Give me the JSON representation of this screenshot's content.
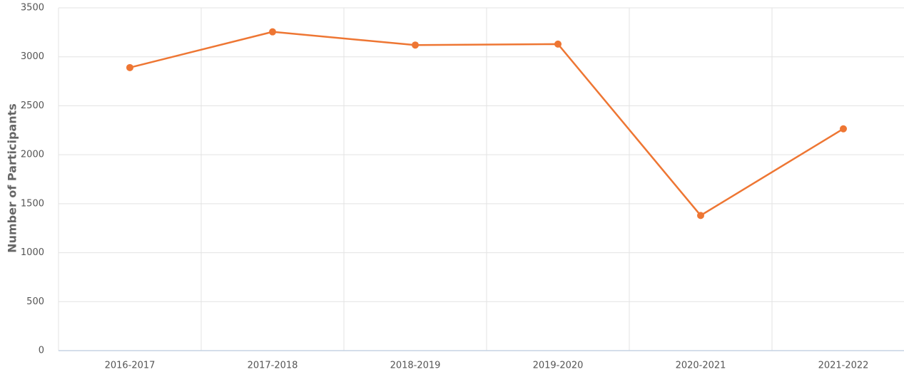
{
  "chart_data": {
    "type": "line",
    "y_label": "Number of Participants",
    "categories": [
      "2016-2017",
      "2017-2018",
      "2018-2019",
      "2019-2020",
      "2020-2021",
      "2021-2022"
    ],
    "series": [
      {
        "name": "Participants",
        "color": "#ee7633",
        "values": [
          2890,
          3255,
          3120,
          3130,
          1380,
          2265
        ]
      }
    ],
    "ylim": [
      0,
      3500
    ],
    "yticks": [
      0,
      500,
      1000,
      1500,
      2000,
      2500,
      3000,
      3500
    ],
    "grid": true
  }
}
